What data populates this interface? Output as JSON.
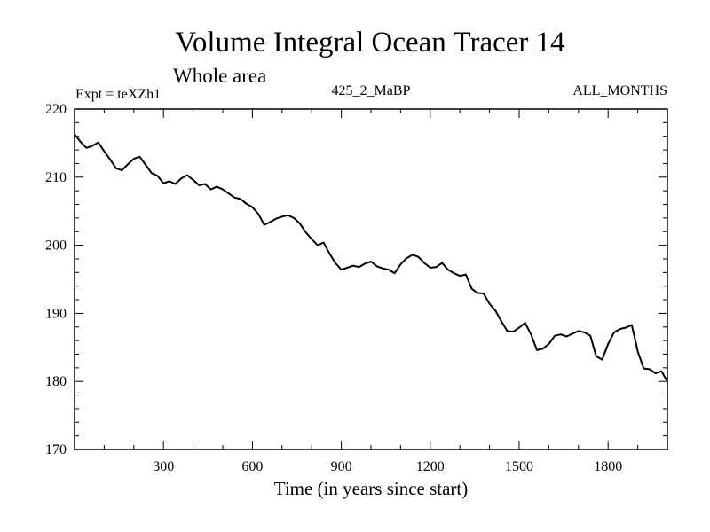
{
  "chart_data": {
    "type": "line",
    "title": "Volume Integral Ocean Tracer 14",
    "subtitle": "Whole area",
    "annotations": {
      "left": "Expt = teXZh1",
      "center": "425_2_MaBP",
      "right": "ALL_MONTHS"
    },
    "xlabel": "Time (in years since start)",
    "ylabel": "",
    "xlim": [
      0,
      2000
    ],
    "ylim": [
      170,
      220
    ],
    "xticks": [
      300,
      600,
      900,
      1200,
      1500,
      1800
    ],
    "yticks": [
      170,
      180,
      190,
      200,
      210,
      220
    ],
    "series": [
      {
        "name": "Volume integral",
        "x": [
          0,
          20,
          40,
          60,
          80,
          100,
          120,
          140,
          160,
          180,
          200,
          220,
          240,
          260,
          280,
          300,
          320,
          340,
          360,
          380,
          400,
          420,
          440,
          460,
          480,
          500,
          520,
          540,
          560,
          580,
          600,
          620,
          640,
          660,
          680,
          700,
          720,
          740,
          760,
          780,
          800,
          820,
          840,
          860,
          880,
          900,
          920,
          940,
          960,
          980,
          1000,
          1020,
          1040,
          1060,
          1080,
          1100,
          1120,
          1140,
          1160,
          1180,
          1200,
          1220,
          1240,
          1260,
          1280,
          1300,
          1320,
          1340,
          1360,
          1380,
          1400,
          1420,
          1440,
          1460,
          1480,
          1500,
          1520,
          1540,
          1560,
          1580,
          1600,
          1620,
          1640,
          1660,
          1680,
          1700,
          1720,
          1740,
          1760,
          1780,
          1800,
          1820,
          1840,
          1860,
          1880,
          1900,
          1920,
          1940,
          1960,
          1980,
          2000
        ],
        "values": [
          216.3,
          215.2,
          214.3,
          214.6,
          215.1,
          213.8,
          212.6,
          211.3,
          211.0,
          211.9,
          212.7,
          213.0,
          211.8,
          210.6,
          210.2,
          209.1,
          209.4,
          209.0,
          209.8,
          210.3,
          209.6,
          208.8,
          209.0,
          208.2,
          208.6,
          208.2,
          207.6,
          207.0,
          206.8,
          206.1,
          205.6,
          204.6,
          203.0,
          203.4,
          203.9,
          204.2,
          204.4,
          204.0,
          203.2,
          201.9,
          200.9,
          200.0,
          200.4,
          198.8,
          197.4,
          196.4,
          196.7,
          197.0,
          196.8,
          197.3,
          197.6,
          196.9,
          196.6,
          196.4,
          195.9,
          197.2,
          198.1,
          198.6,
          198.3,
          197.4,
          196.7,
          196.8,
          197.4,
          196.4,
          195.9,
          195.5,
          195.7,
          193.6,
          193.0,
          192.9,
          191.4,
          190.4,
          188.8,
          187.4,
          187.3,
          187.9,
          188.6,
          186.9,
          184.6,
          184.8,
          185.5,
          186.7,
          186.9,
          186.6,
          187.0,
          187.4,
          187.2,
          186.7,
          183.7,
          183.2,
          185.5,
          187.2,
          187.7,
          187.9,
          188.3,
          184.4,
          181.9,
          181.8,
          181.2,
          181.5,
          180.0
        ]
      }
    ]
  }
}
